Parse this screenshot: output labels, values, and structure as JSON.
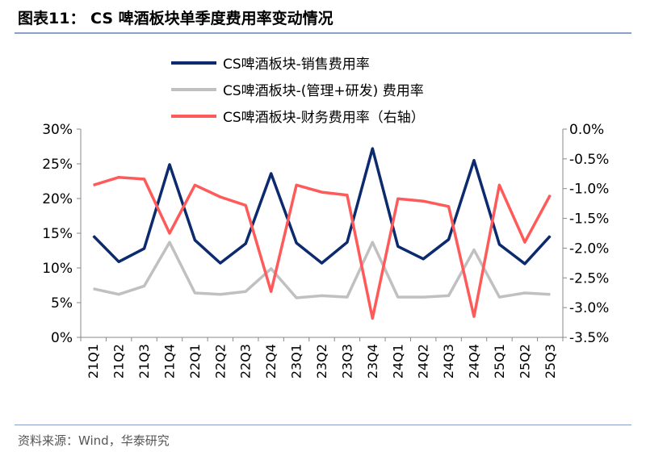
{
  "title": "图表11：  CS 啤酒板块单季度费用率变动情况",
  "source": "资料来源：Wind，华泰研究",
  "chart_data": {
    "type": "line",
    "categories": [
      "21Q1",
      "21Q2",
      "21Q3",
      "21Q4",
      "22Q1",
      "22Q2",
      "22Q3",
      "22Q4",
      "23Q1",
      "23Q2",
      "23Q3",
      "23Q4",
      "24Q1",
      "24Q2",
      "24Q3",
      "24Q4",
      "25Q1",
      "25Q2",
      "25Q3"
    ],
    "left_ylim": [
      0,
      30
    ],
    "left_ticks": [
      "0%",
      "5%",
      "10%",
      "15%",
      "20%",
      "25%",
      "30%"
    ],
    "right_ylim": [
      -3.5,
      0
    ],
    "right_ticks": [
      "-3.5%",
      "-3.0%",
      "-2.5%",
      "-2.0%",
      "-1.5%",
      "-1.0%",
      "-0.5%",
      "0.0%"
    ],
    "legend_position": "top",
    "series": [
      {
        "name": "CS啤酒板块-销售费用率",
        "axis": "left",
        "color": "#0c2a6e",
        "values": [
          14.6,
          10.9,
          12.8,
          24.9,
          14.0,
          10.7,
          13.5,
          23.6,
          13.6,
          10.7,
          13.7,
          27.2,
          13.1,
          11.3,
          14.1,
          25.5,
          13.4,
          10.6,
          14.6
        ]
      },
      {
        "name": "CS啤酒板块-(管理+研发) 费用率",
        "axis": "left",
        "color": "#c0c0c0",
        "values": [
          7.0,
          6.2,
          7.4,
          13.7,
          6.4,
          6.2,
          6.6,
          9.9,
          5.7,
          6.0,
          5.8,
          13.7,
          5.8,
          5.8,
          6.0,
          12.6,
          5.8,
          6.4,
          6.2
        ]
      },
      {
        "name": "CS啤酒板块-财务费用率（右轴）",
        "axis": "right",
        "color": "#ff5a5a",
        "values": [
          -0.94,
          -0.81,
          -0.84,
          -1.75,
          -0.94,
          -1.14,
          -1.28,
          -2.73,
          -0.94,
          -1.06,
          -1.11,
          -3.18,
          -1.17,
          -1.21,
          -1.3,
          -3.15,
          -0.94,
          -1.9,
          -1.11
        ]
      }
    ]
  }
}
